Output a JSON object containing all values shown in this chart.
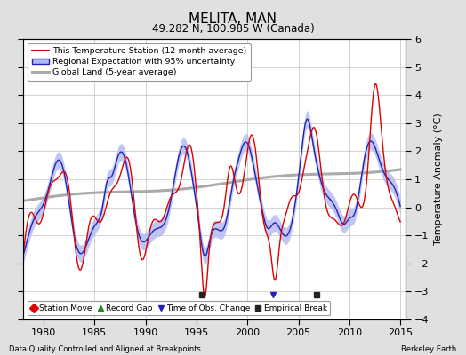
{
  "title": "MELITA, MAN",
  "subtitle": "49.282 N, 100.985 W (Canada)",
  "ylabel": "Temperature Anomaly (°C)",
  "xlabel_left": "Data Quality Controlled and Aligned at Breakpoints",
  "xlabel_right": "Berkeley Earth",
  "ylim": [
    -4,
    6
  ],
  "xlim": [
    1978.0,
    2015.5
  ],
  "yticks": [
    -4,
    -3,
    -2,
    -1,
    0,
    1,
    2,
    3,
    4,
    5,
    6
  ],
  "xticks": [
    1980,
    1985,
    1990,
    1995,
    2000,
    2005,
    2010,
    2015
  ],
  "bg_color": "#e0e0e0",
  "plot_bg_color": "#ffffff",
  "grid_color": "#c0c0c0",
  "red_line_color": "#dd0000",
  "blue_line_color": "#2222bb",
  "blue_fill_color": "#b0b8ee",
  "gray_line_color": "#aaaaaa",
  "empirical_break_years": [
    1995.5,
    2006.75
  ],
  "obs_change_year": 2002.5,
  "legend1_labels": [
    "This Temperature Station (12-month average)",
    "Regional Expectation with 95% uncertainty",
    "Global Land (5-year average)"
  ],
  "legend2_labels": [
    "Station Move",
    "Record Gap",
    "Time of Obs. Change",
    "Empirical Break"
  ],
  "legend2_colors": [
    "#dd0000",
    "#228822",
    "#2222bb",
    "#222222"
  ],
  "legend2_markers": [
    "D",
    "^",
    "v",
    "s"
  ]
}
